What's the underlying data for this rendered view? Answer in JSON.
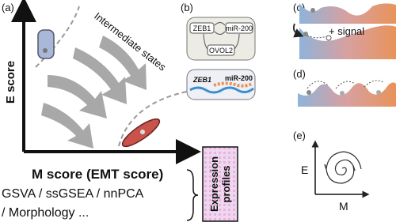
{
  "panel_a": {
    "label": "(a)",
    "y_axis": "E score",
    "x_axis": "M score (EMT score)",
    "methods_line1": "GSVA / ssGSEA / nnPCA",
    "methods_line2": "/ Morphology ...",
    "intermediate": "Intermediate states",
    "expression_line1": "Expression",
    "expression_line2": "profiles"
  },
  "panel_b": {
    "label": "(b)",
    "node_zeb1": "ZEB1",
    "node_mir200": "miR-200",
    "node_ovol2": "OVOL2",
    "strand_zeb1": "ZEB1",
    "strand_mir200": "miR-200"
  },
  "panel_c": {
    "label": "(c)",
    "signal": "+ signal"
  },
  "panel_d": {
    "label": "(d)"
  },
  "panel_e": {
    "label": "(e)",
    "y_axis": "E",
    "x_axis": "M"
  }
}
